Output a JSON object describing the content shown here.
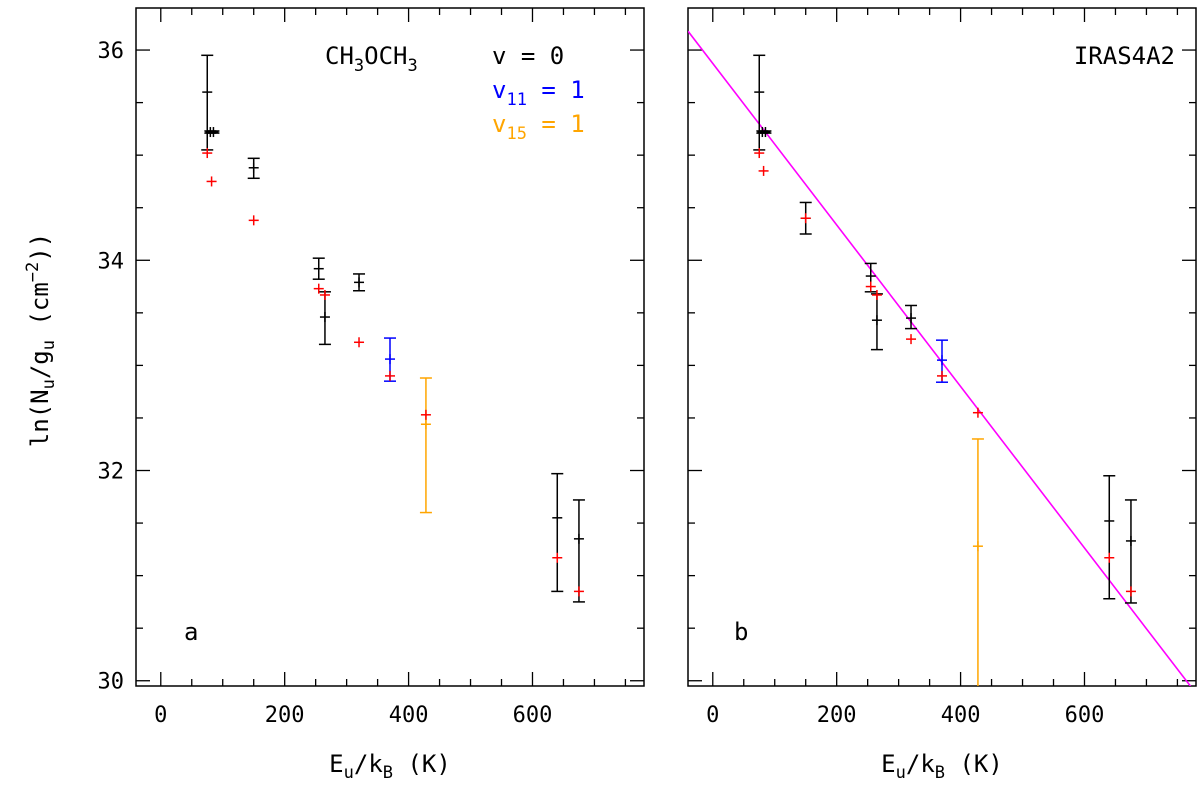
{
  "figure": {
    "ylabel": "ln(N_u/g_u (cm^-2))",
    "ylabel_parts": {
      "prefix": "ln(N",
      "sub1": "u",
      "mid": "/g",
      "sub2": "u",
      "unit_open": " (cm",
      "sup": "−2",
      "close": "))"
    }
  },
  "chart_data": [
    {
      "type": "scatter",
      "panel_label": "a",
      "annotation_molecule": {
        "p1": "CH",
        "s1": "3",
        "p2": "OCH",
        "s2": "3"
      },
      "legend": [
        {
          "label": "v",
          "sub": "",
          "value": " = 0",
          "color": "#000000"
        },
        {
          "label": "v",
          "sub": "11",
          "value": " = 1",
          "color": "#0000ff"
        },
        {
          "label": "v",
          "sub": "15",
          "value": " = 1",
          "color": "#ffa500"
        }
      ],
      "xlabel": "E_u/k_B (K)",
      "xlabel_parts": {
        "p1": "E",
        "s1": "u",
        "p2": "/k",
        "s2": "B",
        "p3": " (K)"
      },
      "xlim": [
        -40,
        780
      ],
      "ylim": [
        29.95,
        36.4
      ],
      "xticks": [
        0,
        200,
        400,
        600
      ],
      "yticks": [
        30,
        32,
        34,
        36
      ],
      "xtick_labels": [
        "0",
        "200",
        "400",
        "600"
      ],
      "ytick_labels": [
        "30",
        "32",
        "34",
        "36"
      ],
      "series": [
        {
          "color": "#000000",
          "points": [
            {
              "x": 75,
              "y": 35.6,
              "lo": 35.05,
              "hi": 35.95
            },
            {
              "x": 80,
              "y": 35.22,
              "lo": 35.21,
              "hi": 35.23
            },
            {
              "x": 85,
              "y": 35.22,
              "lo": 35.21,
              "hi": 35.23
            },
            {
              "x": 150,
              "y": 34.88,
              "lo": 34.78,
              "hi": 34.97
            },
            {
              "x": 255,
              "y": 33.92,
              "lo": 33.82,
              "hi": 34.02
            },
            {
              "x": 265,
              "y": 33.46,
              "lo": 33.2,
              "hi": 33.7
            },
            {
              "x": 320,
              "y": 33.79,
              "lo": 33.71,
              "hi": 33.87
            },
            {
              "x": 640,
              "y": 31.55,
              "lo": 30.85,
              "hi": 31.97
            },
            {
              "x": 675,
              "y": 31.35,
              "lo": 30.75,
              "hi": 31.72
            }
          ]
        },
        {
          "color": "#0000ff",
          "points": [
            {
              "x": 370,
              "y": 33.06,
              "lo": 32.85,
              "hi": 33.26
            }
          ]
        },
        {
          "color": "#ffa500",
          "points": [
            {
              "x": 428,
              "y": 32.44,
              "lo": 31.6,
              "hi": 32.88
            }
          ]
        },
        {
          "color": "#ff0000",
          "points": [
            {
              "x": 75,
              "y": 35.02
            },
            {
              "x": 82,
              "y": 34.75
            },
            {
              "x": 150,
              "y": 34.38
            },
            {
              "x": 255,
              "y": 33.73
            },
            {
              "x": 265,
              "y": 33.67
            },
            {
              "x": 320,
              "y": 33.22
            },
            {
              "x": 370,
              "y": 32.9
            },
            {
              "x": 428,
              "y": 32.53
            },
            {
              "x": 640,
              "y": 31.17
            },
            {
              "x": 675,
              "y": 30.85
            }
          ]
        }
      ]
    },
    {
      "type": "scatter",
      "panel_label": "b",
      "annotation_source": "IRAS4A2",
      "xlabel": "E_u/k_B (K)",
      "xlabel_parts": {
        "p1": "E",
        "s1": "u",
        "p2": "/k",
        "s2": "B",
        "p3": " (K)"
      },
      "xlim": [
        -40,
        780
      ],
      "ylim": [
        29.95,
        36.4
      ],
      "xticks": [
        0,
        200,
        400,
        600
      ],
      "yticks": [
        30,
        32,
        34,
        36
      ],
      "xtick_labels": [
        "0",
        "200",
        "400",
        "600"
      ],
      "fit_line": {
        "color": "#ff00ff",
        "points": [
          [
            -40,
            36.18
          ],
          [
            780,
            29.88
          ]
        ]
      },
      "series": [
        {
          "color": "#000000",
          "points": [
            {
              "x": 75,
              "y": 35.6,
              "lo": 35.05,
              "hi": 35.95
            },
            {
              "x": 80,
              "y": 35.22,
              "lo": 35.21,
              "hi": 35.23
            },
            {
              "x": 85,
              "y": 35.22,
              "lo": 35.21,
              "hi": 35.23
            },
            {
              "x": 150,
              "y": 34.4,
              "lo": 34.25,
              "hi": 34.55
            },
            {
              "x": 255,
              "y": 33.85,
              "lo": 33.7,
              "hi": 33.97
            },
            {
              "x": 265,
              "y": 33.43,
              "lo": 33.15,
              "hi": 33.68
            },
            {
              "x": 320,
              "y": 33.45,
              "lo": 33.35,
              "hi": 33.57
            },
            {
              "x": 640,
              "y": 31.52,
              "lo": 30.78,
              "hi": 31.95
            },
            {
              "x": 675,
              "y": 31.33,
              "lo": 30.74,
              "hi": 31.72
            }
          ]
        },
        {
          "color": "#0000ff",
          "points": [
            {
              "x": 370,
              "y": 33.05,
              "lo": 32.84,
              "hi": 33.24
            }
          ]
        },
        {
          "color": "#ffa500",
          "points": [
            {
              "x": 428,
              "y": 31.28,
              "lo": 29.95,
              "hi": 32.3
            }
          ]
        },
        {
          "color": "#ff0000",
          "points": [
            {
              "x": 75,
              "y": 35.02
            },
            {
              "x": 82,
              "y": 34.85
            },
            {
              "x": 150,
              "y": 34.4
            },
            {
              "x": 255,
              "y": 33.75
            },
            {
              "x": 265,
              "y": 33.67
            },
            {
              "x": 320,
              "y": 33.25
            },
            {
              "x": 370,
              "y": 32.9
            },
            {
              "x": 428,
              "y": 32.55
            },
            {
              "x": 640,
              "y": 31.17
            },
            {
              "x": 675,
              "y": 30.85
            }
          ]
        }
      ]
    }
  ]
}
